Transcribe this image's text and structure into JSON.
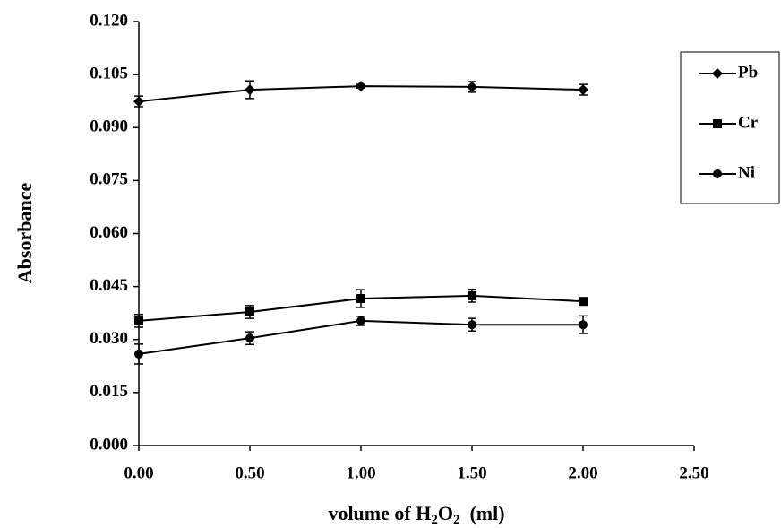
{
  "chart_data": {
    "type": "line",
    "y_label": "Absorbance",
    "x_label_parts": [
      "volume of H",
      "2",
      "O",
      "2",
      "  (ml)"
    ],
    "x": [
      0,
      0.5,
      1,
      1.5,
      2
    ],
    "xlim": [
      0,
      2.5
    ],
    "xticks": [
      {
        "value": 0,
        "label": "0.00"
      },
      {
        "value": 0.5,
        "label": "0.50"
      },
      {
        "value": 1,
        "label": "1.00"
      },
      {
        "value": 1.5,
        "label": "1.50"
      },
      {
        "value": 2,
        "label": "2.00"
      },
      {
        "value": 2.5,
        "label": "2.50"
      }
    ],
    "ylim": [
      0,
      0.12
    ],
    "yticks": [
      {
        "value": 0,
        "label": "0.000"
      },
      {
        "value": 0.015,
        "label": "0.015"
      },
      {
        "value": 0.03,
        "label": "0.030"
      },
      {
        "value": 0.045,
        "label": "0.045"
      },
      {
        "value": 0.06,
        "label": "0.060"
      },
      {
        "value": 0.075,
        "label": "0.075"
      },
      {
        "value": 0.09,
        "label": "0.090"
      },
      {
        "value": 0.105,
        "label": "0.105"
      },
      {
        "value": 0.12,
        "label": "0.120"
      }
    ],
    "grid": false,
    "legend": "right",
    "series": [
      {
        "name": "Pb",
        "color": "#000000",
        "marker": "diamond",
        "values": [
          0.0974,
          0.1007,
          0.1017,
          0.1015,
          0.1007
        ],
        "errors": [
          0.0015,
          0.0025,
          0.0005,
          0.0015,
          0.0015
        ]
      },
      {
        "name": "Cr",
        "color": "#000000",
        "marker": "square",
        "values": [
          0.0353,
          0.0378,
          0.0416,
          0.0424,
          0.0408
        ],
        "errors": [
          0.0018,
          0.0018,
          0.0025,
          0.0018,
          0.0008
        ]
      },
      {
        "name": "Ni",
        "color": "#000000",
        "marker": "circle",
        "values": [
          0.0259,
          0.0304,
          0.0353,
          0.0342,
          0.0342
        ],
        "errors": [
          0.0028,
          0.0018,
          0.0013,
          0.0018,
          0.0025
        ]
      }
    ]
  }
}
